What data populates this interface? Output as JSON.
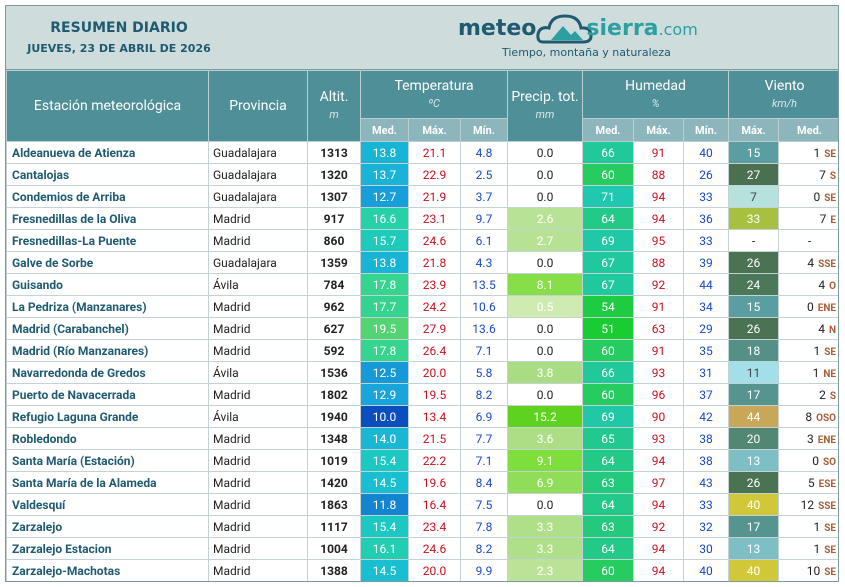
{
  "header": {
    "title": "RESUMEN DIARIO",
    "date": "JUEVES, 23 DE ABRIL DE 2026",
    "logo": {
      "meteo": "meteo",
      "sierra": "sierra",
      "com": ".com",
      "tagline": "Tiempo, montaña y naturaleza"
    }
  },
  "table": {
    "header": {
      "station": "Estación meteorológica",
      "province": "Provincia",
      "alt": "Altit.",
      "alt_unit": "m",
      "temp": "Temperatura",
      "temp_unit": "ºC",
      "precip": "Precip. tot.",
      "precip_unit": "mm",
      "hum": "Humedad",
      "hum_unit": "%",
      "wind": "Viento",
      "wind_unit": "km/h",
      "sub": [
        "Med.",
        "Máx.",
        "Mín.",
        "Med.",
        "Máx.",
        "Mín.",
        "Máx.",
        "Med."
      ]
    },
    "rows": [
      [
        "Aldeanueva de Atienza",
        "Guadalajara",
        "1313",
        "13.8",
        "21.1",
        "4.8",
        "0.0",
        "66",
        "91",
        "40",
        "15",
        "1",
        "SE"
      ],
      [
        "Cantalojas",
        "Guadalajara",
        "1320",
        "13.7",
        "22.9",
        "2.5",
        "0.0",
        "60",
        "88",
        "26",
        "27",
        "7",
        "S"
      ],
      [
        "Condemios de Arriba",
        "Guadalajara",
        "1307",
        "12.7",
        "21.9",
        "3.7",
        "0.0",
        "71",
        "94",
        "33",
        "7",
        "0",
        "SE"
      ],
      [
        "Fresnedillas de la Oliva",
        "Madrid",
        "917",
        "16.6",
        "23.1",
        "9.7",
        "2.6",
        "64",
        "94",
        "36",
        "33",
        "7",
        "E"
      ],
      [
        "Fresnedillas-La Puente",
        "Madrid",
        "860",
        "15.7",
        "24.6",
        "6.1",
        "2.7",
        "69",
        "95",
        "33",
        "-",
        "-",
        null
      ],
      [
        "Galve de Sorbe",
        "Guadalajara",
        "1359",
        "13.8",
        "21.8",
        "4.3",
        "0.0",
        "67",
        "88",
        "39",
        "26",
        "4",
        "SSE"
      ],
      [
        "Guisando",
        "Ávila",
        "784",
        "17.8",
        "23.9",
        "13.5",
        "8.1",
        "67",
        "92",
        "44",
        "24",
        "4",
        "O"
      ],
      [
        "La Pedriza (Manzanares)",
        "Madrid",
        "962",
        "17.7",
        "24.2",
        "10.6",
        "0.5",
        "54",
        "91",
        "34",
        "15",
        "0",
        "ENE"
      ],
      [
        "Madrid (Carabanchel)",
        "Madrid",
        "627",
        "19.5",
        "27.9",
        "13.6",
        "0.0",
        "51",
        "63",
        "29",
        "26",
        "4",
        "N"
      ],
      [
        "Madrid (Río Manzanares)",
        "Madrid",
        "592",
        "17.8",
        "26.4",
        "7.1",
        "0.0",
        "60",
        "91",
        "35",
        "18",
        "1",
        "SE"
      ],
      [
        "Navarredonda de Gredos",
        "Ávila",
        "1536",
        "12.5",
        "20.0",
        "5.8",
        "3.8",
        "66",
        "93",
        "31",
        "11",
        "1",
        "NE"
      ],
      [
        "Puerto de Navacerrada",
        "Madrid",
        "1802",
        "12.9",
        "19.5",
        "8.2",
        "0.0",
        "60",
        "96",
        "37",
        "17",
        "2",
        "S"
      ],
      [
        "Refugio Laguna Grande",
        "Ávila",
        "1940",
        "10.0",
        "13.4",
        "6.9",
        "15.2",
        "69",
        "90",
        "42",
        "44",
        "8",
        "OSO"
      ],
      [
        "Robledondo",
        "Madrid",
        "1348",
        "14.0",
        "21.5",
        "7.7",
        "3.6",
        "65",
        "93",
        "38",
        "20",
        "3",
        "ENE"
      ],
      [
        "Santa María (Estación)",
        "Madrid",
        "1019",
        "15.4",
        "22.2",
        "7.1",
        "9.1",
        "64",
        "94",
        "38",
        "13",
        "0",
        "SO"
      ],
      [
        "Santa María de la Alameda",
        "Madrid",
        "1420",
        "14.5",
        "19.6",
        "8.4",
        "6.9",
        "63",
        "97",
        "43",
        "26",
        "5",
        "ESE"
      ],
      [
        "Valdesquí",
        "Madrid",
        "1863",
        "11.8",
        "16.4",
        "7.5",
        "0.0",
        "64",
        "94",
        "33",
        "40",
        "12",
        "SSE"
      ],
      [
        "Zarzalejo",
        "Madrid",
        "1117",
        "15.4",
        "23.4",
        "7.8",
        "3.3",
        "63",
        "92",
        "32",
        "17",
        "1",
        "SE"
      ],
      [
        "Zarzalejo Estacion",
        "Madrid",
        "1004",
        "16.1",
        "24.6",
        "8.2",
        "3.3",
        "64",
        "94",
        "30",
        "13",
        "1",
        "SE"
      ],
      [
        "Zarzalejo-Machotas",
        "Madrid",
        "1388",
        "14.5",
        "20.0",
        "9.9",
        "2.3",
        "60",
        "94",
        "40",
        "40",
        "10",
        "SE"
      ]
    ]
  }
}
